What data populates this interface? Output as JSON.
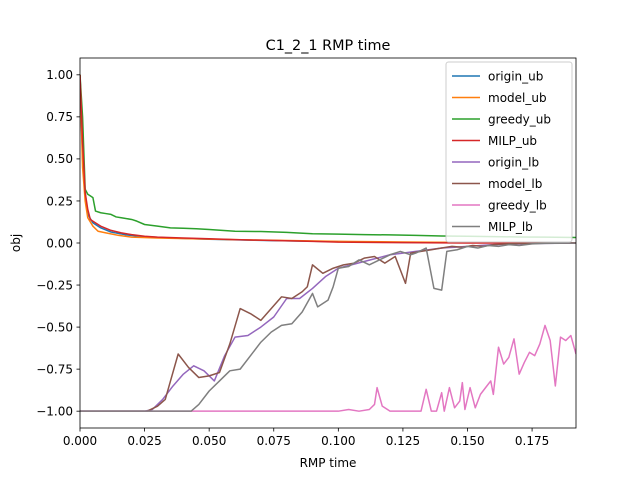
{
  "chart_data": {
    "type": "line",
    "title": "C1_2_1 RMP time",
    "xlabel": "RMP time",
    "ylabel": "obj",
    "xlim": [
      0,
      0.192
    ],
    "ylim": [
      -1.1,
      1.1
    ],
    "xticks": [
      0.0,
      0.025,
      0.05,
      0.075,
      0.1,
      0.125,
      0.15,
      0.175
    ],
    "xtick_labels": [
      "0.000",
      "0.025",
      "0.050",
      "0.075",
      "0.100",
      "0.125",
      "0.150",
      "0.175"
    ],
    "yticks": [
      -1.0,
      -0.75,
      -0.5,
      -0.25,
      0.0,
      0.25,
      0.5,
      0.75,
      1.0
    ],
    "ytick_labels": [
      "−1.00",
      "−0.75",
      "−0.50",
      "−0.25",
      "0.00",
      "0.25",
      "0.50",
      "0.75",
      "1.00"
    ],
    "legend_position": "top-right",
    "grid": false,
    "series": [
      {
        "name": "origin_ub",
        "color": "#1f77b4",
        "points": [
          [
            0.0,
            1.0
          ],
          [
            0.001,
            0.5
          ],
          [
            0.002,
            0.3
          ],
          [
            0.003,
            0.17
          ],
          [
            0.005,
            0.12
          ],
          [
            0.008,
            0.09
          ],
          [
            0.012,
            0.065
          ],
          [
            0.018,
            0.048
          ],
          [
            0.025,
            0.038
          ],
          [
            0.035,
            0.03
          ],
          [
            0.05,
            0.022
          ],
          [
            0.075,
            0.014
          ],
          [
            0.1,
            0.008
          ],
          [
            0.125,
            0.004
          ],
          [
            0.15,
            0.002
          ],
          [
            0.175,
            0.0
          ],
          [
            0.192,
            0.0
          ]
        ]
      },
      {
        "name": "model_ub",
        "color": "#ff7f0e",
        "points": [
          [
            0.0,
            1.0
          ],
          [
            0.001,
            0.45
          ],
          [
            0.002,
            0.25
          ],
          [
            0.003,
            0.15
          ],
          [
            0.005,
            0.1
          ],
          [
            0.007,
            0.07
          ],
          [
            0.01,
            0.06
          ],
          [
            0.015,
            0.045
          ],
          [
            0.02,
            0.035
          ],
          [
            0.03,
            0.03
          ],
          [
            0.05,
            0.023
          ],
          [
            0.075,
            0.016
          ],
          [
            0.1,
            0.01
          ],
          [
            0.125,
            0.006
          ],
          [
            0.15,
            0.003
          ],
          [
            0.175,
            0.001
          ],
          [
            0.192,
            0.0
          ]
        ]
      },
      {
        "name": "greedy_ub",
        "color": "#2ca02c",
        "points": [
          [
            0.0,
            1.0
          ],
          [
            0.001,
            0.75
          ],
          [
            0.002,
            0.32
          ],
          [
            0.003,
            0.29
          ],
          [
            0.004,
            0.28
          ],
          [
            0.005,
            0.27
          ],
          [
            0.006,
            0.19
          ],
          [
            0.008,
            0.18
          ],
          [
            0.01,
            0.175
          ],
          [
            0.012,
            0.17
          ],
          [
            0.014,
            0.155
          ],
          [
            0.016,
            0.15
          ],
          [
            0.02,
            0.14
          ],
          [
            0.022,
            0.13
          ],
          [
            0.025,
            0.11
          ],
          [
            0.03,
            0.1
          ],
          [
            0.035,
            0.09
          ],
          [
            0.04,
            0.088
          ],
          [
            0.045,
            0.085
          ],
          [
            0.05,
            0.08
          ],
          [
            0.055,
            0.075
          ],
          [
            0.06,
            0.07
          ],
          [
            0.07,
            0.068
          ],
          [
            0.08,
            0.063
          ],
          [
            0.09,
            0.055
          ],
          [
            0.1,
            0.053
          ],
          [
            0.11,
            0.05
          ],
          [
            0.12,
            0.048
          ],
          [
            0.13,
            0.045
          ],
          [
            0.14,
            0.042
          ],
          [
            0.15,
            0.04
          ],
          [
            0.16,
            0.038
          ],
          [
            0.17,
            0.036
          ],
          [
            0.18,
            0.035
          ],
          [
            0.192,
            0.033
          ]
        ]
      },
      {
        "name": "MILP_ub",
        "color": "#d62728",
        "points": [
          [
            0.0,
            1.0
          ],
          [
            0.001,
            0.6
          ],
          [
            0.002,
            0.3
          ],
          [
            0.003,
            0.2
          ],
          [
            0.004,
            0.14
          ],
          [
            0.006,
            0.12
          ],
          [
            0.008,
            0.1
          ],
          [
            0.012,
            0.075
          ],
          [
            0.016,
            0.06
          ],
          [
            0.02,
            0.05
          ],
          [
            0.025,
            0.04
          ],
          [
            0.03,
            0.035
          ],
          [
            0.04,
            0.03
          ],
          [
            0.05,
            0.025
          ],
          [
            0.06,
            0.02
          ],
          [
            0.075,
            0.015
          ],
          [
            0.09,
            0.01
          ],
          [
            0.1,
            0.005
          ],
          [
            0.125,
            0.002
          ],
          [
            0.15,
            0.0
          ],
          [
            0.175,
            0.0
          ],
          [
            0.192,
            0.0
          ]
        ]
      },
      {
        "name": "origin_lb",
        "color": "#9467bd",
        "points": [
          [
            0.0,
            -1.0
          ],
          [
            0.025,
            -1.0
          ],
          [
            0.028,
            -0.99
          ],
          [
            0.032,
            -0.93
          ],
          [
            0.036,
            -0.85
          ],
          [
            0.04,
            -0.78
          ],
          [
            0.044,
            -0.73
          ],
          [
            0.048,
            -0.76
          ],
          [
            0.052,
            -0.82
          ],
          [
            0.056,
            -0.67
          ],
          [
            0.06,
            -0.56
          ],
          [
            0.065,
            -0.55
          ],
          [
            0.07,
            -0.5
          ],
          [
            0.075,
            -0.44
          ],
          [
            0.08,
            -0.33
          ],
          [
            0.085,
            -0.33
          ],
          [
            0.09,
            -0.27
          ],
          [
            0.095,
            -0.2
          ],
          [
            0.1,
            -0.15
          ],
          [
            0.105,
            -0.13
          ],
          [
            0.11,
            -0.11
          ],
          [
            0.115,
            -0.09
          ],
          [
            0.12,
            -0.07
          ],
          [
            0.125,
            -0.06
          ],
          [
            0.13,
            -0.05
          ],
          [
            0.135,
            -0.04
          ],
          [
            0.14,
            -0.03
          ],
          [
            0.145,
            -0.025
          ],
          [
            0.15,
            -0.02
          ],
          [
            0.155,
            -0.015
          ],
          [
            0.16,
            -0.01
          ],
          [
            0.165,
            -0.008
          ],
          [
            0.17,
            -0.005
          ],
          [
            0.175,
            -0.003
          ],
          [
            0.18,
            -0.002
          ],
          [
            0.192,
            -0.001
          ]
        ]
      },
      {
        "name": "model_lb",
        "color": "#8c564b",
        "points": [
          [
            0.0,
            -1.0
          ],
          [
            0.026,
            -1.0
          ],
          [
            0.03,
            -0.97
          ],
          [
            0.033,
            -0.93
          ],
          [
            0.038,
            -0.66
          ],
          [
            0.042,
            -0.74
          ],
          [
            0.046,
            -0.8
          ],
          [
            0.05,
            -0.79
          ],
          [
            0.054,
            -0.77
          ],
          [
            0.058,
            -0.6
          ],
          [
            0.062,
            -0.39
          ],
          [
            0.066,
            -0.42
          ],
          [
            0.07,
            -0.46
          ],
          [
            0.074,
            -0.39
          ],
          [
            0.078,
            -0.32
          ],
          [
            0.082,
            -0.33
          ],
          [
            0.086,
            -0.29
          ],
          [
            0.088,
            -0.26
          ],
          [
            0.09,
            -0.13
          ],
          [
            0.094,
            -0.18
          ],
          [
            0.098,
            -0.15
          ],
          [
            0.102,
            -0.13
          ],
          [
            0.106,
            -0.12
          ],
          [
            0.11,
            -0.09
          ],
          [
            0.114,
            -0.08
          ],
          [
            0.118,
            -0.12
          ],
          [
            0.122,
            -0.08
          ],
          [
            0.126,
            -0.24
          ],
          [
            0.128,
            -0.06
          ],
          [
            0.132,
            -0.05
          ],
          [
            0.136,
            -0.04
          ],
          [
            0.14,
            -0.03
          ],
          [
            0.144,
            -0.02
          ],
          [
            0.148,
            -0.025
          ],
          [
            0.152,
            -0.015
          ],
          [
            0.156,
            -0.02
          ],
          [
            0.16,
            -0.01
          ],
          [
            0.165,
            -0.005
          ],
          [
            0.17,
            -0.003
          ],
          [
            0.175,
            -0.002
          ],
          [
            0.18,
            -0.001
          ],
          [
            0.192,
            0.0
          ]
        ]
      },
      {
        "name": "greedy_lb",
        "color": "#e377c2",
        "points": [
          [
            0.0,
            -1.0
          ],
          [
            0.1,
            -1.0
          ],
          [
            0.104,
            -0.99
          ],
          [
            0.108,
            -1.0
          ],
          [
            0.112,
            -0.99
          ],
          [
            0.114,
            -0.96
          ],
          [
            0.115,
            -0.86
          ],
          [
            0.117,
            -0.97
          ],
          [
            0.12,
            -1.0
          ],
          [
            0.125,
            -1.0
          ],
          [
            0.13,
            -1.0
          ],
          [
            0.132,
            -1.0
          ],
          [
            0.134,
            -0.87
          ],
          [
            0.136,
            -1.0
          ],
          [
            0.138,
            -1.0
          ],
          [
            0.14,
            -0.89
          ],
          [
            0.141,
            -1.0
          ],
          [
            0.143,
            -0.86
          ],
          [
            0.145,
            -0.98
          ],
          [
            0.147,
            -0.94
          ],
          [
            0.148,
            -0.83
          ],
          [
            0.149,
            -0.99
          ],
          [
            0.151,
            -0.86
          ],
          [
            0.153,
            -0.98
          ],
          [
            0.155,
            -0.9
          ],
          [
            0.157,
            -0.86
          ],
          [
            0.159,
            -0.82
          ],
          [
            0.16,
            -0.9
          ],
          [
            0.162,
            -0.62
          ],
          [
            0.164,
            -0.72
          ],
          [
            0.166,
            -0.68
          ],
          [
            0.168,
            -0.57
          ],
          [
            0.17,
            -0.78
          ],
          [
            0.172,
            -0.71
          ],
          [
            0.174,
            -0.65
          ],
          [
            0.176,
            -0.67
          ],
          [
            0.178,
            -0.6
          ],
          [
            0.18,
            -0.49
          ],
          [
            0.182,
            -0.58
          ],
          [
            0.184,
            -0.85
          ],
          [
            0.186,
            -0.56
          ],
          [
            0.188,
            -0.58
          ],
          [
            0.19,
            -0.55
          ],
          [
            0.192,
            -0.66
          ]
        ]
      },
      {
        "name": "MILP_lb",
        "color": "#7f7f7f",
        "points": [
          [
            0.0,
            -1.0
          ],
          [
            0.043,
            -1.0
          ],
          [
            0.046,
            -0.96
          ],
          [
            0.05,
            -0.88
          ],
          [
            0.054,
            -0.82
          ],
          [
            0.058,
            -0.76
          ],
          [
            0.062,
            -0.75
          ],
          [
            0.066,
            -0.67
          ],
          [
            0.07,
            -0.59
          ],
          [
            0.074,
            -0.53
          ],
          [
            0.078,
            -0.49
          ],
          [
            0.082,
            -0.48
          ],
          [
            0.086,
            -0.41
          ],
          [
            0.09,
            -0.3
          ],
          [
            0.092,
            -0.38
          ],
          [
            0.096,
            -0.34
          ],
          [
            0.098,
            -0.26
          ],
          [
            0.1,
            -0.15
          ],
          [
            0.104,
            -0.14
          ],
          [
            0.108,
            -0.1
          ],
          [
            0.112,
            -0.13
          ],
          [
            0.116,
            -0.1
          ],
          [
            0.12,
            -0.07
          ],
          [
            0.124,
            -0.05
          ],
          [
            0.128,
            -0.07
          ],
          [
            0.13,
            -0.06
          ],
          [
            0.134,
            -0.03
          ],
          [
            0.137,
            -0.27
          ],
          [
            0.14,
            -0.28
          ],
          [
            0.142,
            -0.05
          ],
          [
            0.146,
            -0.04
          ],
          [
            0.15,
            -0.02
          ],
          [
            0.154,
            -0.03
          ],
          [
            0.158,
            -0.015
          ],
          [
            0.162,
            -0.02
          ],
          [
            0.166,
            -0.01
          ],
          [
            0.17,
            -0.015
          ],
          [
            0.175,
            -0.005
          ],
          [
            0.18,
            -0.002
          ],
          [
            0.192,
            0.0
          ]
        ]
      }
    ]
  }
}
